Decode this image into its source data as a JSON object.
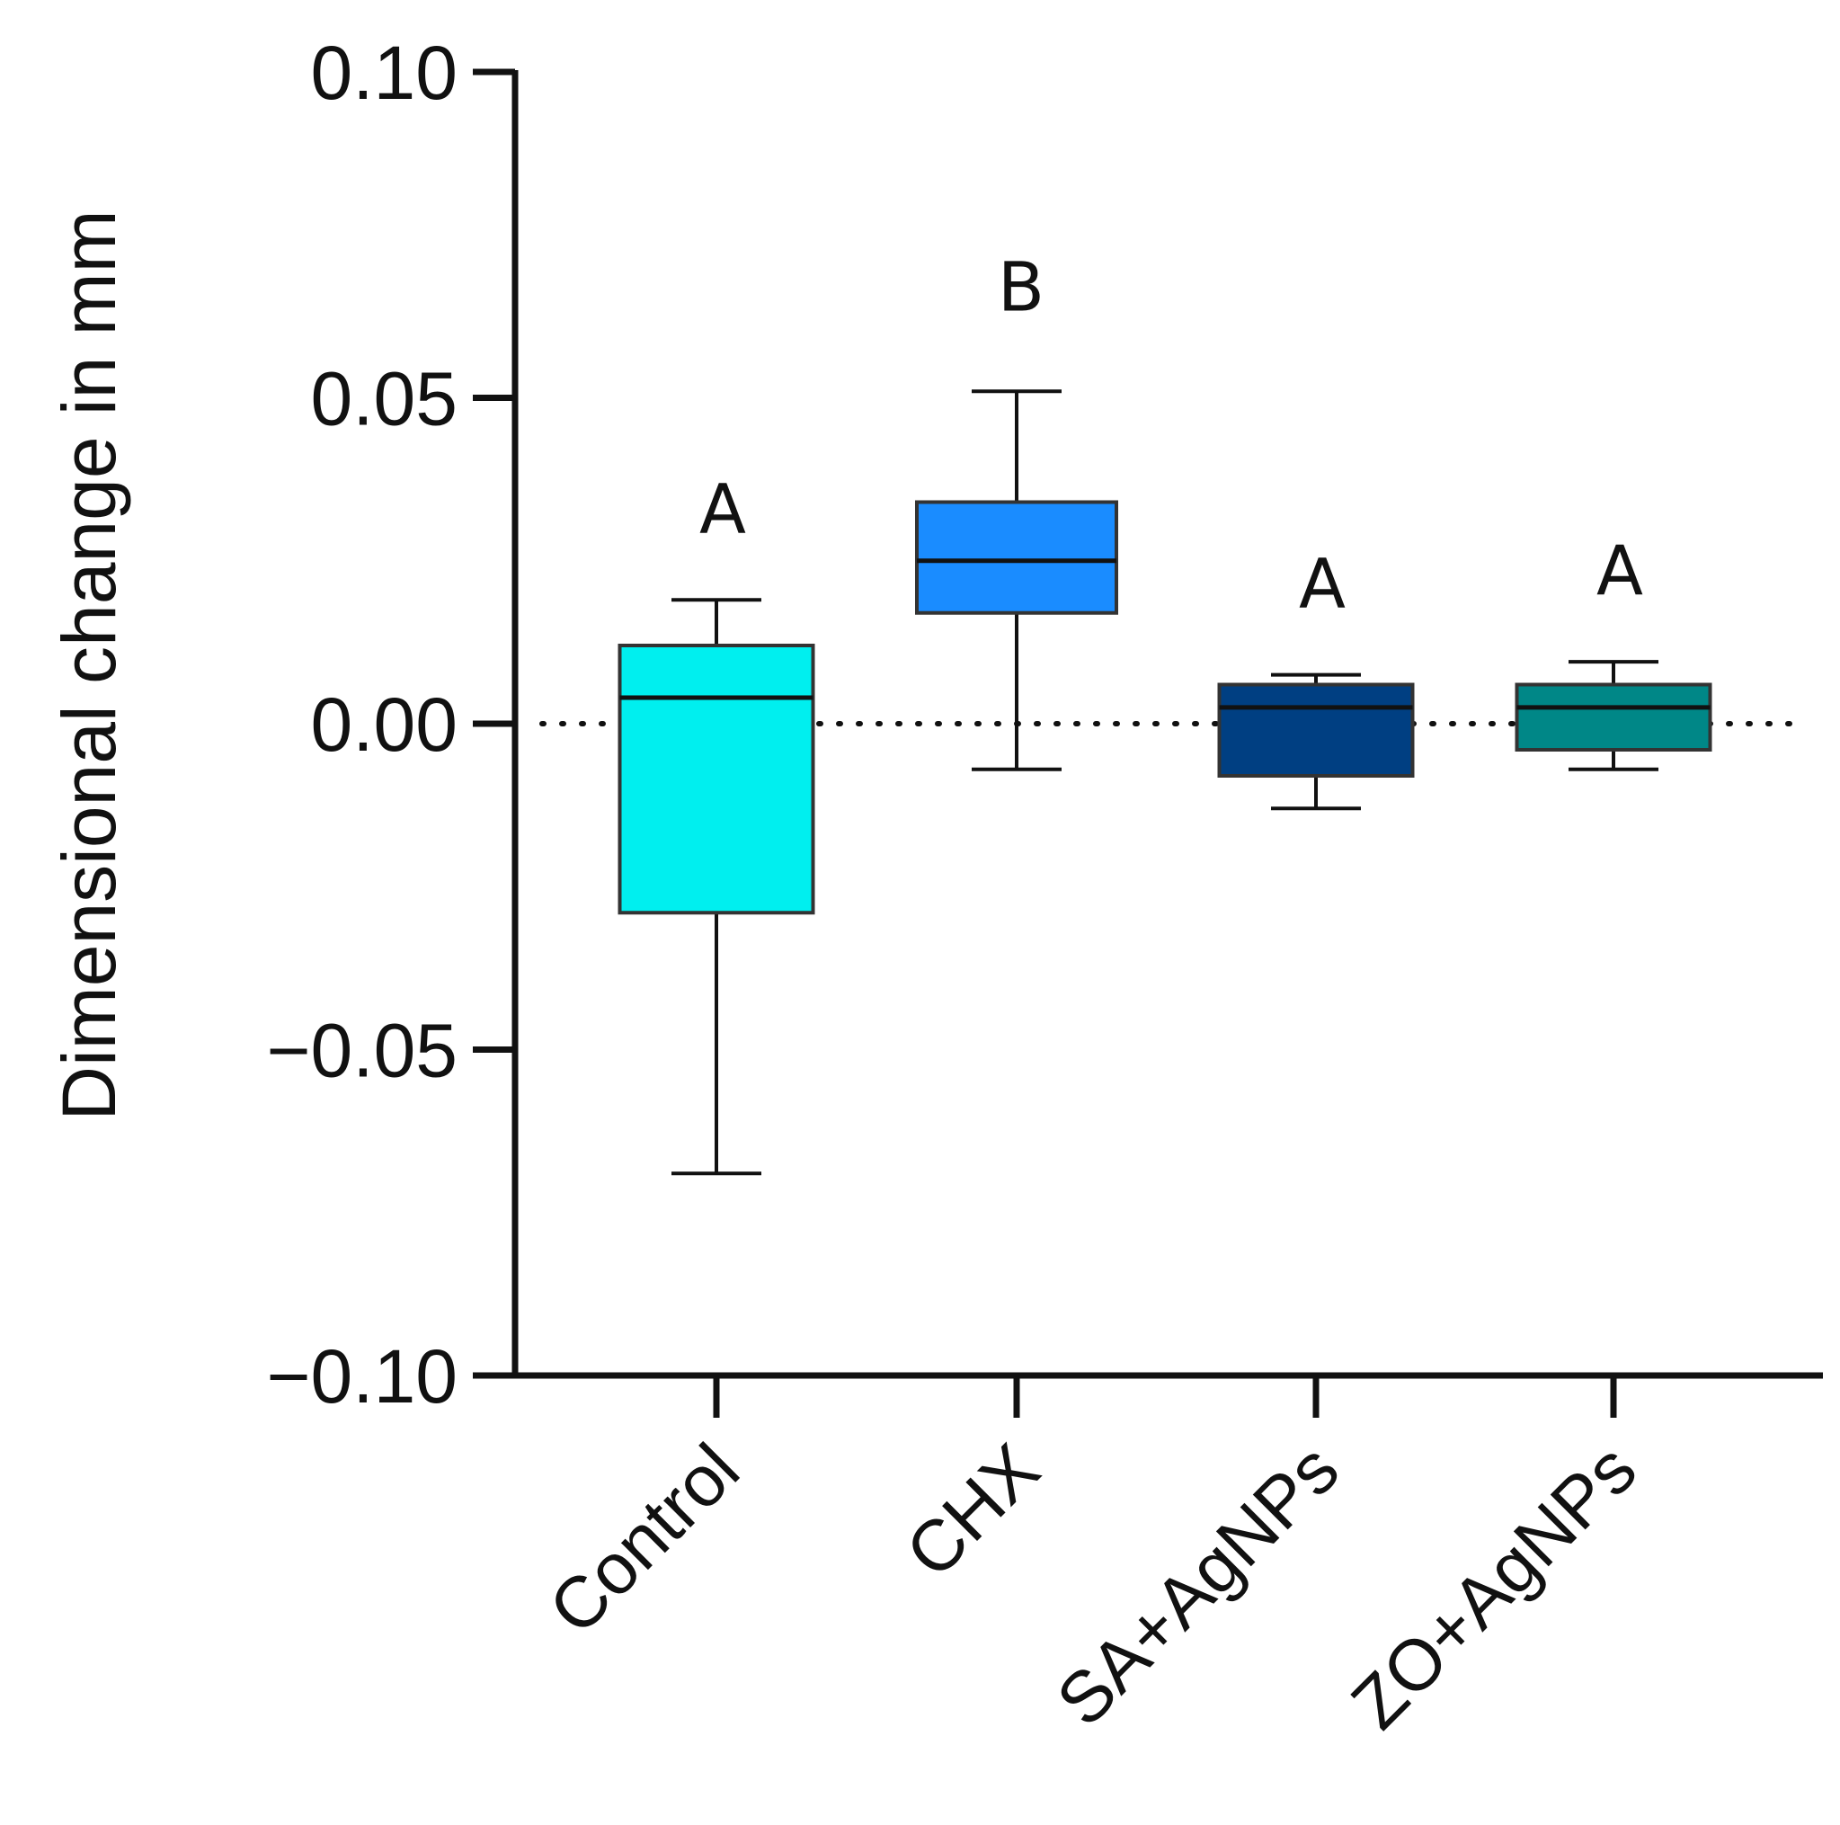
{
  "chart_data": {
    "type": "box",
    "title": "",
    "xlabel": "",
    "ylabel": "Dimensional change in mm",
    "ylim": [
      -0.1,
      0.1
    ],
    "yticks": [
      0.1,
      0.05,
      0.0,
      -0.05,
      -0.1
    ],
    "ytick_labels": [
      "0.10",
      "0.05",
      "0.00",
      "−0.05",
      "−0.10"
    ],
    "reference_line": {
      "y": 0.0,
      "style": "dotted"
    },
    "categories": [
      "Control",
      "CHX",
      "SA+AgNPs",
      "ZO+AgNPs"
    ],
    "series": [
      {
        "name": "Control",
        "min": -0.069,
        "q1": -0.029,
        "median": 0.004,
        "q3": 0.012,
        "max": 0.019,
        "color": "#00EFEF",
        "letter": "A"
      },
      {
        "name": "CHX",
        "min": -0.007,
        "q1": 0.017,
        "median": 0.025,
        "q3": 0.034,
        "max": 0.051,
        "color": "#1A8CFF",
        "letter": "B"
      },
      {
        "name": "SA+AgNPs",
        "min": -0.013,
        "q1": -0.008,
        "median": 0.0025,
        "q3": 0.006,
        "max": 0.0075,
        "color": "#003F82",
        "letter": "A"
      },
      {
        "name": "ZO+AgNPs",
        "min": -0.007,
        "q1": -0.004,
        "median": 0.0025,
        "q3": 0.006,
        "max": 0.0095,
        "color": "#008787",
        "letter": "A"
      }
    ]
  }
}
